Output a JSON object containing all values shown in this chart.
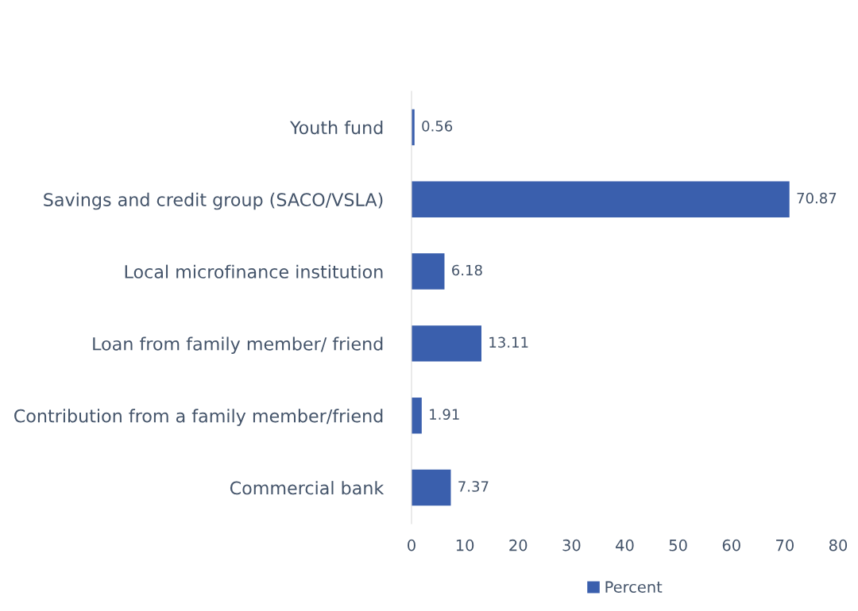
{
  "chart_data": {
    "type": "bar",
    "orientation": "horizontal",
    "categories": [
      "Youth fund",
      "Savings and credit group (SACO/VSLA)",
      "Local microfinance institution",
      "Loan from family member/ friend",
      "Contribution from a family member/friend",
      "Commercial bank"
    ],
    "series": [
      {
        "name": "Percent",
        "color": "#3a5fad",
        "values": [
          0.56,
          70.87,
          6.18,
          13.11,
          1.91,
          7.37
        ]
      }
    ],
    "xlim": [
      0,
      80
    ],
    "xticks": [
      0,
      10,
      20,
      30,
      40,
      50,
      60,
      70,
      80
    ],
    "data_labels": true,
    "grid": false,
    "legend": "bottom"
  }
}
